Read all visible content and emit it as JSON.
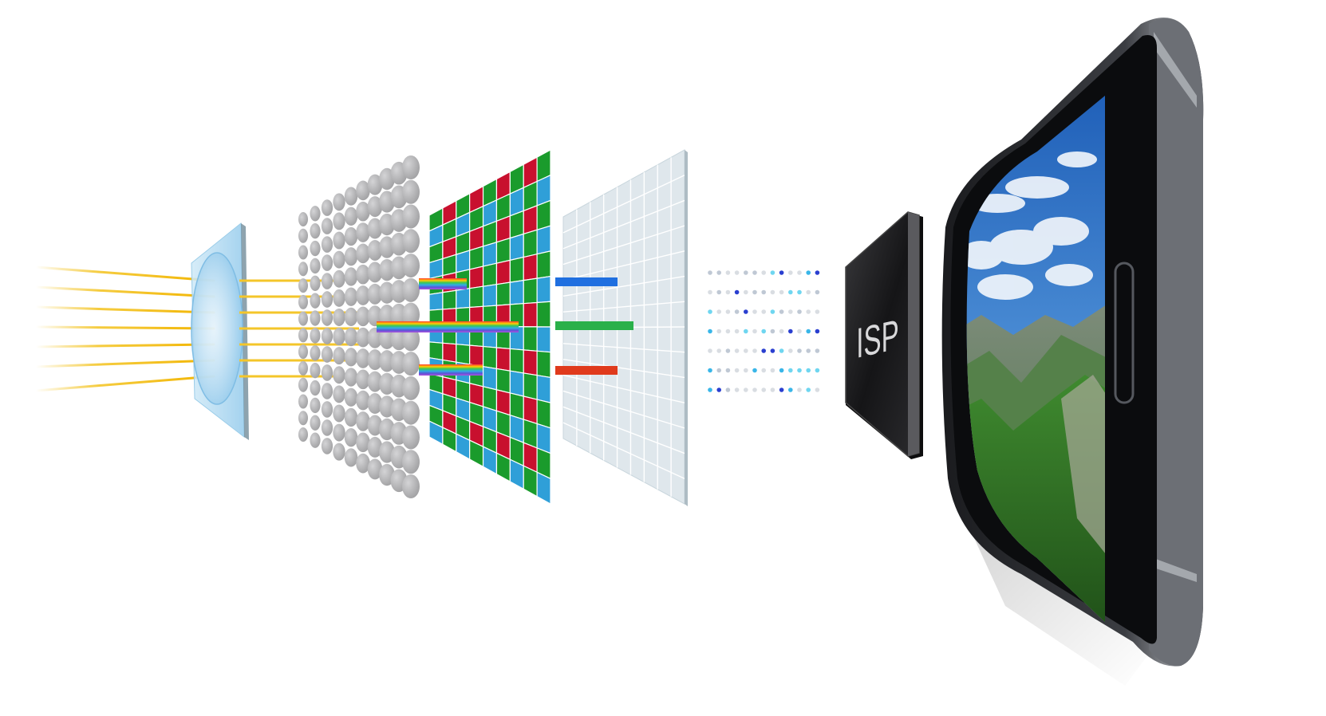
{
  "diagram": {
    "isp_label": "ISP",
    "colors": {
      "light_ray": "#f4c62a",
      "filter_red": "#c8102e",
      "filter_green": "#1a9b2c",
      "filter_blue": "#2f9fd8",
      "output_blue": "#1f6fe0",
      "output_green": "#2ab04a",
      "output_red": "#e03a1c",
      "microlens": "#b9b9bb",
      "photodiode_grid": "#c9d6dd",
      "isp_chip": "#1c1c1e",
      "phone_body": "#2a2c30"
    },
    "stages": [
      {
        "name": "lens-icon",
        "icon": "lens"
      },
      {
        "name": "microlens-array-icon",
        "icon": "microlens-array"
      },
      {
        "name": "color-filter-array-icon",
        "icon": "bayer-filter"
      },
      {
        "name": "photodiode-grid-icon",
        "icon": "sensor-grid"
      },
      {
        "name": "digital-signal-dots-icon",
        "icon": "signal-dots"
      },
      {
        "name": "isp-chip-icon",
        "icon": "chip"
      },
      {
        "name": "smartphone-icon",
        "icon": "smartphone"
      }
    ]
  }
}
